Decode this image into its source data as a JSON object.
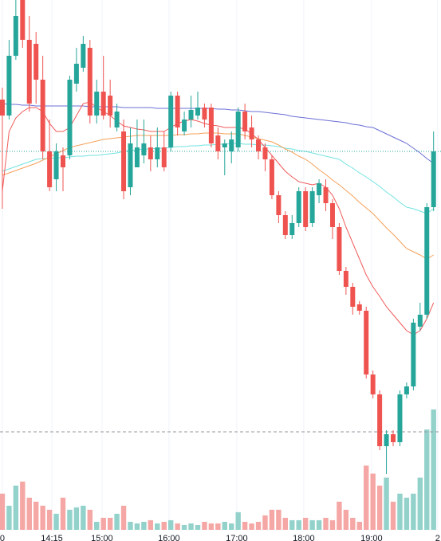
{
  "chart_data": {
    "type": "candlestick",
    "colors": {
      "up": "#26a69a",
      "down": "#ef5350",
      "volume_up": "#93d2cb",
      "volume_down": "#f5a7a5",
      "grid": "#f0f3fa"
    },
    "ylim": [
      0,
      660
    ],
    "volume_ylim": [
      0,
      660
    ],
    "xlim": [
      -0.35,
      65.1
    ],
    "grid": true,
    "xticks": [
      0,
      {
        "value": 7.34,
        "label": "14:15"
      },
      {
        "value": 14.79,
        "label": "15:00"
      },
      {
        "value": 24.73,
        "label": "16:00"
      },
      {
        "value": 34.79,
        "label": "17:00"
      },
      {
        "value": 44.73,
        "label": "18:00"
      },
      {
        "value": 54.79,
        "label": "19:00"
      },
      {
        "value": 64.6,
        "label": "2"
      }
    ],
    "open": [
      535,
      515,
      590,
      660,
      610,
      605,
      560,
      470,
      435,
      465,
      465,
      555,
      575,
      600,
      515,
      545,
      540,
      500,
      495,
      425,
      450,
      465,
      475,
      460,
      475,
      475,
      540,
      495,
      510,
      515,
      525,
      525,
      490,
      475,
      470,
      475,
      520,
      500,
      485,
      475,
      460,
      415,
      390,
      365,
      380,
      420,
      380,
      415,
      425,
      405,
      375,
      320,
      300,
      278,
      270,
      190,
      165,
      100,
      115,
      105,
      165,
      175,
      250,
      265,
      400
    ],
    "high": [
      550,
      610,
      660,
      660,
      640,
      620,
      590,
      510,
      480,
      475,
      565,
      600,
      615,
      610,
      560,
      590,
      560,
      530,
      510,
      500,
      510,
      510,
      490,
      500,
      495,
      545,
      545,
      520,
      540,
      545,
      530,
      530,
      500,
      485,
      495,
      525,
      530,
      515,
      490,
      480,
      465,
      420,
      395,
      390,
      425,
      425,
      425,
      435,
      435,
      410,
      380,
      325,
      305,
      282,
      275,
      195,
      170,
      120,
      120,
      170,
      180,
      260,
      280,
      405,
      495
    ],
    "low": [
      398,
      510,
      585,
      600,
      520,
      530,
      460,
      420,
      420,
      420,
      460,
      545,
      570,
      505,
      505,
      510,
      500,
      495,
      410,
      415,
      450,
      455,
      445,
      450,
      445,
      470,
      490,
      490,
      500,
      510,
      500,
      475,
      460,
      440,
      455,
      470,
      485,
      475,
      460,
      445,
      410,
      380,
      360,
      360,
      375,
      370,
      375,
      405,
      395,
      360,
      315,
      290,
      265,
      265,
      185,
      160,
      95,
      65,
      100,
      100,
      160,
      170,
      245,
      260,
      395
    ],
    "close": [
      515,
      590,
      640,
      610,
      530,
      560,
      470,
      425,
      470,
      450,
      560,
      580,
      605,
      515,
      545,
      515,
      515,
      520,
      420,
      480,
      475,
      480,
      460,
      475,
      450,
      540,
      500,
      510,
      522,
      525,
      510,
      480,
      470,
      480,
      485,
      520,
      495,
      485,
      470,
      460,
      415,
      390,
      365,
      380,
      420,
      375,
      420,
      430,
      405,
      375,
      320,
      300,
      275,
      270,
      190,
      165,
      100,
      115,
      105,
      165,
      175,
      255,
      265,
      400,
      470
    ],
    "volume": [
      45,
      30,
      55,
      60,
      40,
      35,
      30,
      25,
      20,
      40,
      25,
      28,
      30,
      25,
      10,
      15,
      15,
      20,
      30,
      10,
      8,
      10,
      12,
      8,
      10,
      12,
      8,
      6,
      8,
      6,
      10,
      8,
      8,
      10,
      8,
      22,
      10,
      8,
      10,
      18,
      25,
      25,
      15,
      12,
      12,
      15,
      12,
      12,
      15,
      12,
      35,
      25,
      15,
      10,
      80,
      70,
      55,
      65,
      35,
      45,
      40,
      45,
      65,
      125,
      150
    ],
    "moving_averages": [
      {
        "color": "#6a6fd6",
        "values": [
          530,
          529,
          529,
          528,
          528,
          527,
          527,
          527,
          527,
          527,
          527,
          527,
          527,
          526,
          526,
          526,
          526,
          526,
          525,
          525,
          525,
          525,
          525,
          524,
          524,
          524,
          524,
          524,
          524,
          524,
          524,
          524,
          523,
          523,
          522,
          522,
          521,
          520,
          520,
          519,
          518,
          517,
          516,
          514,
          513,
          512,
          511,
          510,
          509,
          508,
          507,
          506,
          504,
          503,
          501,
          500,
          496,
          492,
          488,
          484,
          480,
          474,
          468,
          461,
          455
        ]
      },
      {
        "color": "#72e3e0",
        "values": [
          445,
          448,
          451,
          454,
          457,
          460,
          461,
          461,
          462,
          462,
          463,
          464,
          464,
          465,
          465,
          466,
          467,
          468,
          470,
          471,
          472,
          473,
          473,
          474,
          474,
          475,
          476,
          476,
          477,
          477,
          478,
          478,
          479,
          479,
          480,
          480,
          479,
          479,
          478,
          478,
          477,
          476,
          474,
          473,
          471,
          470,
          468,
          466,
          464,
          462,
          460,
          454,
          449,
          443,
          438,
          432,
          426,
          419,
          413,
          406,
          400,
          398,
          395,
          392,
          398
        ]
      },
      {
        "color": "#f5a15a",
        "values": [
          440,
          443,
          446,
          449,
          452,
          455,
          459,
          463,
          467,
          471,
          475,
          477,
          479,
          481,
          483,
          485,
          486,
          487,
          488,
          489,
          490,
          490,
          490,
          490,
          490,
          490,
          491,
          491,
          492,
          492,
          493,
          493,
          493,
          492,
          492,
          492,
          490,
          488,
          486,
          484,
          482,
          478,
          473,
          469,
          464,
          460,
          454,
          447,
          441,
          434,
          428,
          421,
          414,
          406,
          399,
          392,
          383,
          374,
          366,
          357,
          348,
          344,
          340,
          335,
          340
        ]
      },
      {
        "color": "#f05b5b",
        "values": [
          420,
          495,
          512,
          520,
          525,
          525,
          520,
          505,
          495,
          495,
          500,
          515,
          530,
          532,
          525,
          520,
          515,
          508,
          502,
          500,
          498,
          497,
          495,
          495,
          495,
          500,
          505,
          508,
          510,
          508,
          505,
          503,
          502,
          500,
          500,
          500,
          498,
          492,
          485,
          475,
          465,
          455,
          445,
          438,
          432,
          430,
          428,
          430,
          425,
          415,
          398,
          375,
          355,
          335,
          315,
          300,
          288,
          275,
          265,
          255,
          245,
          240,
          245,
          260,
          280
        ]
      }
    ],
    "price_line": {
      "value": 470,
      "color": "#26a69a"
    },
    "reference_line": {
      "value": 118,
      "color": "#9598a1"
    }
  }
}
